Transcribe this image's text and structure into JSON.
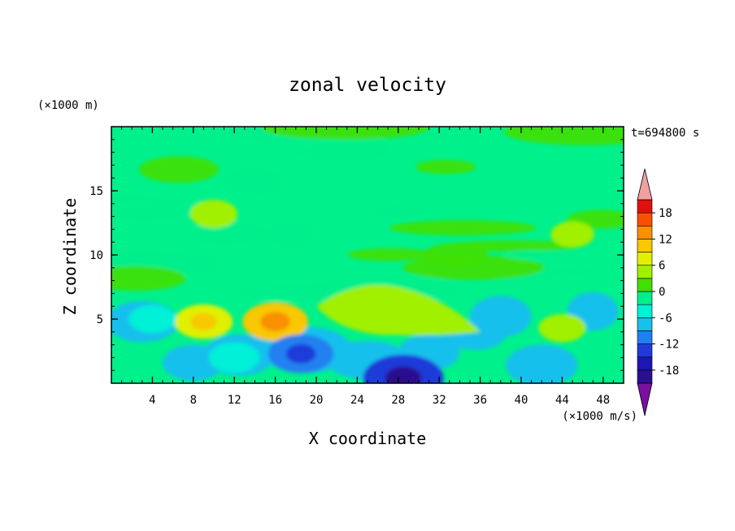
{
  "chart_data": {
    "type": "heatmap",
    "title": "zonal velocity",
    "xlabel": "X coordinate",
    "ylabel": "Z coordinate",
    "x_unit": "(×1000 m/s)",
    "y_unit": "(×1000 m)",
    "time_label": "t=694800 s",
    "xlim": [
      0,
      50
    ],
    "ylim": [
      0,
      20
    ],
    "x_ticks": [
      4,
      8,
      12,
      16,
      20,
      24,
      28,
      32,
      36,
      40,
      44,
      48
    ],
    "y_ticks": [
      5,
      10,
      15
    ],
    "colorbar": {
      "levels": [
        -21,
        -18,
        -15,
        -12,
        -9,
        -6,
        -3,
        0,
        3,
        6,
        9,
        12,
        15,
        18,
        21
      ],
      "tick_labels": [
        18,
        12,
        6,
        0,
        -6,
        -12,
        -18
      ],
      "colors": [
        "#7b0fa0",
        "#2b0f8f",
        "#1c16b4",
        "#1f3ad9",
        "#2080f0",
        "#18c0ec",
        "#00f0d8",
        "#00f08c",
        "#40e000",
        "#a0f000",
        "#e0f000",
        "#f8c800",
        "#f89000",
        "#f85000",
        "#e01010",
        "#f0a0a0"
      ]
    },
    "features": [
      {
        "x": 9,
        "z": 4.8,
        "value": 8
      },
      {
        "x": 16,
        "z": 4.8,
        "value": 10
      },
      {
        "x": 24,
        "z": 5.5,
        "value": 5
      },
      {
        "x": 30,
        "z": 5.0,
        "value": 5
      },
      {
        "x": 44,
        "z": 4.3,
        "value": 5
      },
      {
        "x": 18.5,
        "z": 2.3,
        "value": -10
      },
      {
        "x": 28.5,
        "z": 0.4,
        "value": -14
      },
      {
        "x": 12,
        "z": 2.0,
        "value": -6
      },
      {
        "x": 4,
        "z": 5.0,
        "value": -5
      },
      {
        "x": 10,
        "z": 13.2,
        "value": 5
      },
      {
        "x": 45,
        "z": 11.6,
        "value": 4
      }
    ]
  }
}
